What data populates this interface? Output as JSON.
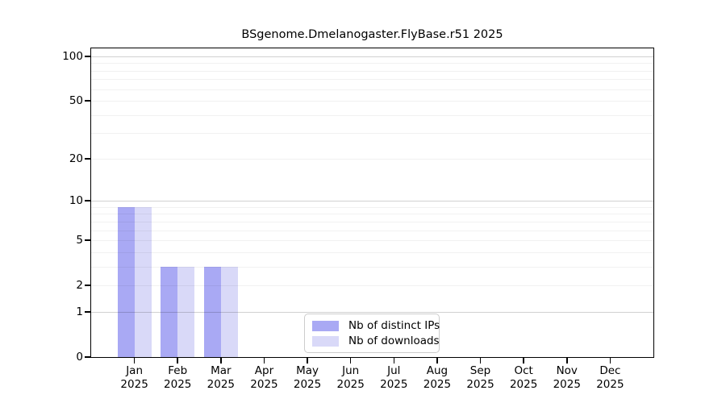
{
  "title": "BSgenome.Dmelanogaster.FlyBase.r51 2025",
  "colors": {
    "background": "#ffffff",
    "axis": "#000000",
    "legend_border": "#cccccc",
    "distinct_ips_bar": "#a9a9f4",
    "downloads_bar": "#d9d9f8"
  },
  "chart_data": {
    "type": "bar",
    "title": "BSgenome.Dmelanogaster.FlyBase.r51 2025",
    "categories": [
      "Jan",
      "Feb",
      "Mar",
      "Apr",
      "May",
      "Jun",
      "Jul",
      "Aug",
      "Sep",
      "Oct",
      "Nov",
      "Dec"
    ],
    "category_year": "2025",
    "series": [
      {
        "name": "Nb of distinct IPs",
        "color": "#a9a9f4",
        "values": [
          9,
          3,
          3,
          0,
          0,
          0,
          0,
          0,
          0,
          0,
          0,
          0
        ]
      },
      {
        "name": "Nb of downloads",
        "color": "#d9d9f8",
        "values": [
          9,
          3,
          3,
          0,
          0,
          0,
          0,
          0,
          0,
          0,
          0,
          0
        ]
      }
    ],
    "xlabel": "",
    "ylabel": "",
    "yscale": "log1p",
    "ylim": [
      0,
      113
    ],
    "ytick_values": [
      0,
      1,
      2,
      5,
      10,
      20,
      50,
      100
    ],
    "ytick_labels": [
      "0",
      "1",
      "2",
      "5",
      "10",
      "20",
      "50",
      "100"
    ],
    "major_grid_values": [
      1,
      10,
      100
    ],
    "minor_grid_values": [
      2,
      3,
      4,
      5,
      6,
      7,
      8,
      9,
      20,
      30,
      40,
      50,
      60,
      70,
      80,
      90
    ],
    "grid": "horizontal-only",
    "legend": {
      "position": "bottom-center",
      "entries": [
        "Nb of distinct IPs",
        "Nb of downloads"
      ]
    }
  }
}
